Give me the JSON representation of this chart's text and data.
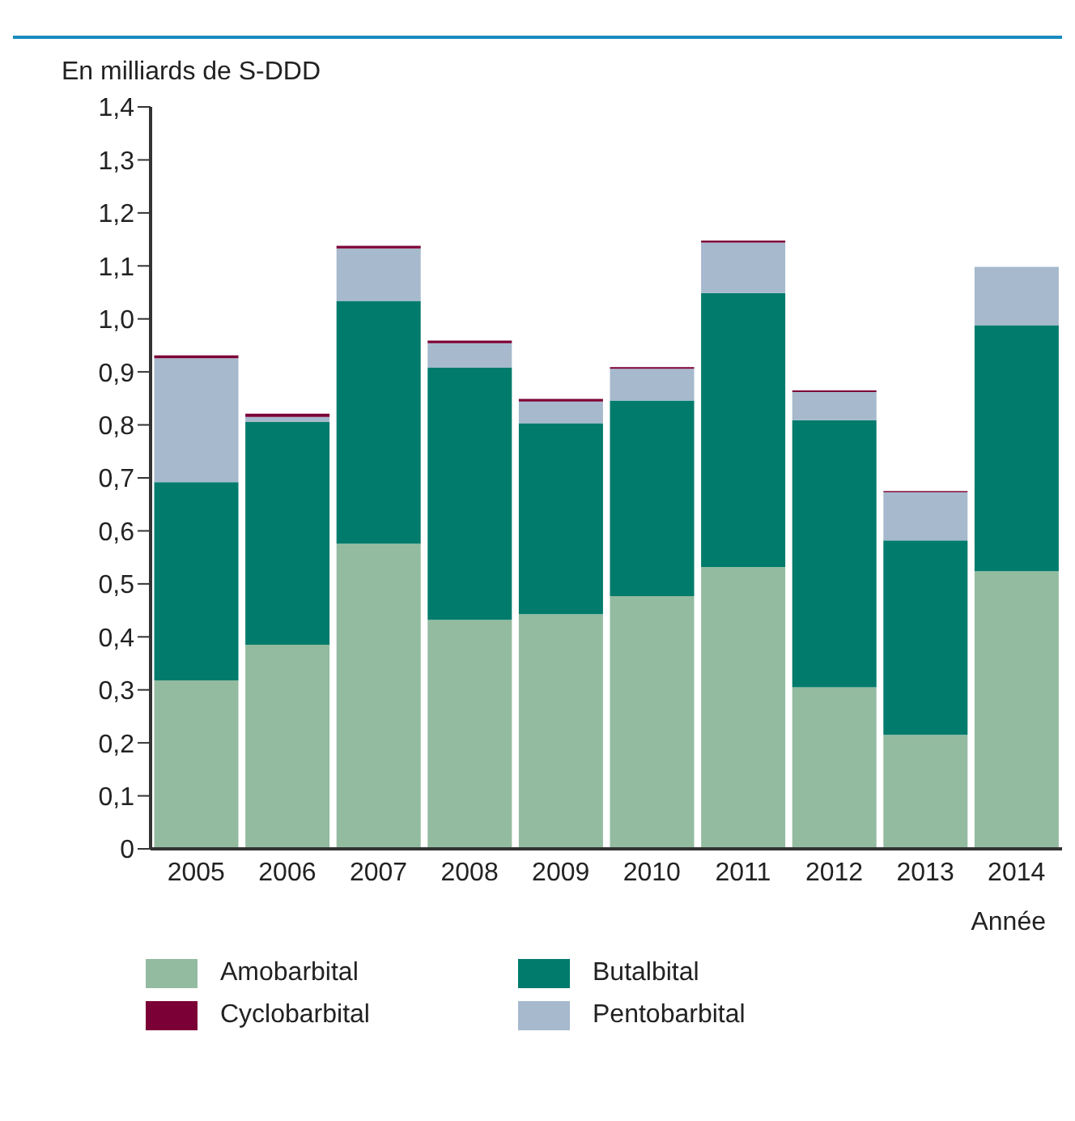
{
  "chart_data": {
    "type": "bar",
    "stacked": true,
    "ylabel": "En milliards de S-DDD",
    "xlabel": "Année",
    "categories": [
      "2005",
      "2006",
      "2007",
      "2008",
      "2009",
      "2010",
      "2011",
      "2012",
      "2013",
      "2014"
    ],
    "series": [
      {
        "name": "Amobarbital",
        "color": "#93bba0",
        "values": [
          0.318,
          0.385,
          0.576,
          0.432,
          0.443,
          0.477,
          0.532,
          0.305,
          0.215,
          0.524
        ]
      },
      {
        "name": "Butalbital",
        "color": "#007b6c",
        "values": [
          0.374,
          0.421,
          0.458,
          0.476,
          0.36,
          0.369,
          0.517,
          0.504,
          0.367,
          0.464
        ]
      },
      {
        "name": "Pentobarbital",
        "color": "#a6b9cd",
        "values": [
          0.234,
          0.009,
          0.099,
          0.046,
          0.041,
          0.06,
          0.095,
          0.053,
          0.091,
          0.11
        ]
      },
      {
        "name": "Cyclobarbital",
        "color": "#7b0035",
        "values": [
          0.005,
          0.006,
          0.005,
          0.005,
          0.005,
          0.003,
          0.004,
          0.003,
          0.002,
          null
        ]
      }
    ],
    "ylim": [
      0,
      1.4
    ],
    "yticks": [
      0,
      {
        "value": 0.1,
        "label": "0,1"
      },
      {
        "value": 0.2,
        "label": "0,2"
      },
      {
        "value": 0.3,
        "label": "0,3"
      },
      {
        "value": 0.4,
        "label": "0,4"
      },
      {
        "value": 0.5,
        "label": "0,5"
      },
      {
        "value": 0.6,
        "label": "0,6"
      },
      {
        "value": 0.7,
        "label": "0,7"
      },
      {
        "value": 0.8,
        "label": "0,8"
      },
      {
        "value": 0.9,
        "label": "0,9"
      },
      {
        "value": 1.0,
        "label": "1,0"
      },
      {
        "value": 1.1,
        "label": "1,1"
      },
      {
        "value": 1.2,
        "label": "1,2"
      },
      {
        "value": 1.3,
        "label": "1,3"
      },
      {
        "value": 1.4,
        "label": "1,4"
      }
    ],
    "grid": false,
    "legend": "bottom"
  }
}
